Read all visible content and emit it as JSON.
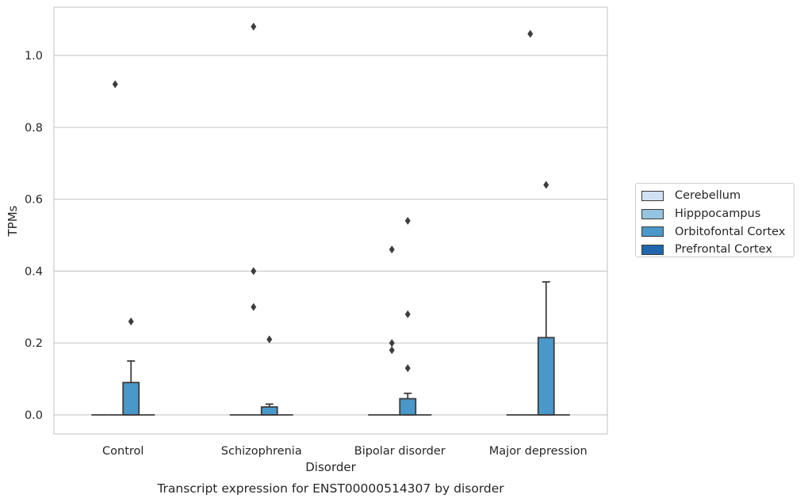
{
  "chart_data": {
    "type": "box",
    "title": "",
    "caption": "Transcript expression for ENST00000514307 by disorder",
    "xlabel": "Disorder",
    "ylabel": "TPMs",
    "ylim": [
      -0.053,
      1.135
    ],
    "yticks": [
      "0.0",
      "0.2",
      "0.4",
      "0.6",
      "0.8",
      "1.0"
    ],
    "ytick_values": [
      0,
      0.2,
      0.4,
      0.6,
      0.8,
      1.0
    ],
    "grid": "horizontal",
    "categories": [
      "Control",
      "Schizophrenia",
      "Bipolar disorder",
      "Major depression"
    ],
    "legend_position": "right",
    "series": [
      {
        "name": "Cerebellum",
        "color": "#d0e1f2",
        "boxes": [
          {
            "min": 0,
            "q1": 0,
            "median": 0,
            "q3": 0,
            "max": 0,
            "outliers": []
          },
          {
            "min": 0,
            "q1": 0,
            "median": 0,
            "q3": 0,
            "max": 0,
            "outliers": []
          },
          {
            "min": 0,
            "q1": 0,
            "median": 0,
            "q3": 0,
            "max": 0,
            "outliers": []
          },
          {
            "min": 0,
            "q1": 0,
            "median": 0,
            "q3": 0,
            "max": 0,
            "outliers": []
          }
        ]
      },
      {
        "name": "Hipppocampus",
        "color": "#94c4df",
        "boxes": [
          {
            "min": 0,
            "q1": 0,
            "median": 0,
            "q3": 0,
            "max": 0,
            "outliers": [
              0.92
            ]
          },
          {
            "min": 0,
            "q1": 0,
            "median": 0,
            "q3": 0,
            "max": 0,
            "outliers": [
              1.08,
              0.4,
              0.3
            ]
          },
          {
            "min": 0,
            "q1": 0,
            "median": 0,
            "q3": 0,
            "max": 0,
            "outliers": [
              0.46,
              0.2,
              0.18
            ]
          },
          {
            "min": 0,
            "q1": 0,
            "median": 0,
            "q3": 0,
            "max": 0,
            "outliers": [
              1.06
            ]
          }
        ]
      },
      {
        "name": "Orbitofontal Cortex",
        "color": "#4a98c9",
        "boxes": [
          {
            "min": 0,
            "q1": 0,
            "median": 0,
            "q3": 0.09,
            "max": 0.15,
            "outliers": [
              0.26
            ]
          },
          {
            "min": 0,
            "q1": 0,
            "median": 0,
            "q3": 0.022,
            "max": 0.03,
            "outliers": [
              0.21
            ]
          },
          {
            "min": 0,
            "q1": 0,
            "median": 0,
            "q3": 0.045,
            "max": 0.06,
            "outliers": [
              0.54,
              0.28,
              0.13
            ]
          },
          {
            "min": 0,
            "q1": 0,
            "median": 0,
            "q3": 0.215,
            "max": 0.37,
            "outliers": [
              0.64
            ]
          }
        ]
      },
      {
        "name": "Prefrontal Cortex",
        "color": "#2166ac",
        "boxes": [
          {
            "min": 0,
            "q1": 0,
            "median": 0,
            "q3": 0,
            "max": 0,
            "outliers": []
          },
          {
            "min": 0,
            "q1": 0,
            "median": 0,
            "q3": 0,
            "max": 0,
            "outliers": []
          },
          {
            "min": 0,
            "q1": 0,
            "median": 0,
            "q3": 0,
            "max": 0,
            "outliers": []
          },
          {
            "min": 0,
            "q1": 0,
            "median": 0,
            "q3": 0,
            "max": 0,
            "outliers": []
          }
        ]
      }
    ]
  }
}
